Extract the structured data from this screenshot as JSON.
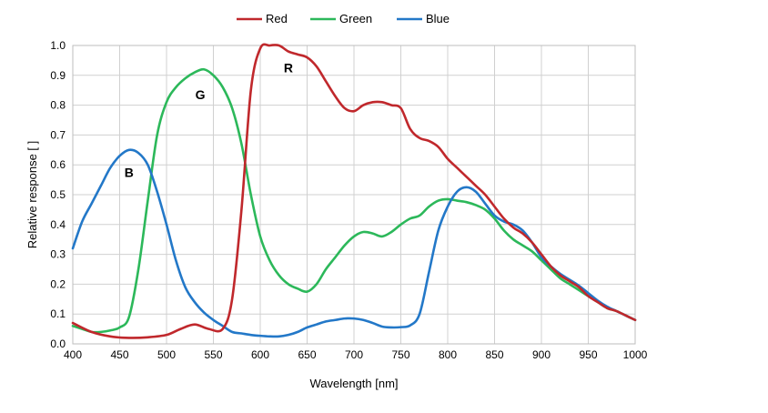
{
  "chart_data": {
    "type": "line",
    "title": "",
    "xlabel": "Wavelength [nm]",
    "ylabel": "Relative response [ ]",
    "xlim": [
      400,
      1000
    ],
    "ylim": [
      0,
      1
    ],
    "x_ticks": [
      400,
      450,
      500,
      550,
      600,
      650,
      700,
      750,
      800,
      850,
      900,
      950,
      1000
    ],
    "y_ticks": [
      0.0,
      0.1,
      0.2,
      0.3,
      0.4,
      0.5,
      0.6,
      0.7,
      0.8,
      0.9,
      1.0
    ],
    "grid": true,
    "legend": {
      "position": "top-center",
      "entries": [
        "Red",
        "Green",
        "Blue"
      ]
    },
    "annotations": [
      {
        "text": "B",
        "x": 460,
        "y": 0.56
      },
      {
        "text": "G",
        "x": 536,
        "y": 0.82
      },
      {
        "text": "R",
        "x": 630,
        "y": 0.91
      }
    ],
    "series": [
      {
        "name": "Red",
        "color": "#c0282c",
        "points": [
          [
            400,
            0.07
          ],
          [
            420,
            0.04
          ],
          [
            440,
            0.025
          ],
          [
            460,
            0.02
          ],
          [
            480,
            0.022
          ],
          [
            500,
            0.03
          ],
          [
            515,
            0.05
          ],
          [
            530,
            0.065
          ],
          [
            545,
            0.05
          ],
          [
            560,
            0.05
          ],
          [
            570,
            0.15
          ],
          [
            580,
            0.45
          ],
          [
            590,
            0.85
          ],
          [
            600,
            0.99
          ],
          [
            610,
            1.0
          ],
          [
            620,
            1.0
          ],
          [
            630,
            0.98
          ],
          [
            640,
            0.97
          ],
          [
            650,
            0.96
          ],
          [
            660,
            0.93
          ],
          [
            670,
            0.88
          ],
          [
            680,
            0.83
          ],
          [
            690,
            0.79
          ],
          [
            700,
            0.78
          ],
          [
            710,
            0.8
          ],
          [
            720,
            0.81
          ],
          [
            730,
            0.81
          ],
          [
            740,
            0.8
          ],
          [
            750,
            0.79
          ],
          [
            760,
            0.72
          ],
          [
            770,
            0.69
          ],
          [
            780,
            0.68
          ],
          [
            790,
            0.66
          ],
          [
            800,
            0.62
          ],
          [
            810,
            0.59
          ],
          [
            820,
            0.56
          ],
          [
            830,
            0.53
          ],
          [
            840,
            0.5
          ],
          [
            850,
            0.46
          ],
          [
            860,
            0.42
          ],
          [
            870,
            0.39
          ],
          [
            880,
            0.37
          ],
          [
            890,
            0.34
          ],
          [
            900,
            0.3
          ],
          [
            910,
            0.26
          ],
          [
            920,
            0.23
          ],
          [
            930,
            0.21
          ],
          [
            940,
            0.19
          ],
          [
            950,
            0.16
          ],
          [
            960,
            0.14
          ],
          [
            970,
            0.12
          ],
          [
            980,
            0.11
          ],
          [
            990,
            0.095
          ],
          [
            1000,
            0.08
          ]
        ]
      },
      {
        "name": "Green",
        "color": "#2cb85a",
        "points": [
          [
            400,
            0.06
          ],
          [
            410,
            0.05
          ],
          [
            420,
            0.04
          ],
          [
            430,
            0.04
          ],
          [
            440,
            0.045
          ],
          [
            450,
            0.055
          ],
          [
            460,
            0.09
          ],
          [
            470,
            0.25
          ],
          [
            480,
            0.48
          ],
          [
            490,
            0.7
          ],
          [
            500,
            0.81
          ],
          [
            510,
            0.86
          ],
          [
            520,
            0.89
          ],
          [
            530,
            0.91
          ],
          [
            540,
            0.92
          ],
          [
            550,
            0.9
          ],
          [
            560,
            0.86
          ],
          [
            570,
            0.79
          ],
          [
            580,
            0.67
          ],
          [
            590,
            0.5
          ],
          [
            600,
            0.36
          ],
          [
            610,
            0.28
          ],
          [
            620,
            0.23
          ],
          [
            630,
            0.2
          ],
          [
            640,
            0.185
          ],
          [
            650,
            0.175
          ],
          [
            660,
            0.2
          ],
          [
            670,
            0.25
          ],
          [
            680,
            0.29
          ],
          [
            690,
            0.33
          ],
          [
            700,
            0.36
          ],
          [
            710,
            0.375
          ],
          [
            720,
            0.37
          ],
          [
            730,
            0.36
          ],
          [
            740,
            0.375
          ],
          [
            750,
            0.4
          ],
          [
            760,
            0.42
          ],
          [
            770,
            0.43
          ],
          [
            780,
            0.46
          ],
          [
            790,
            0.48
          ],
          [
            800,
            0.485
          ],
          [
            810,
            0.48
          ],
          [
            820,
            0.475
          ],
          [
            830,
            0.465
          ],
          [
            840,
            0.45
          ],
          [
            850,
            0.42
          ],
          [
            860,
            0.38
          ],
          [
            870,
            0.35
          ],
          [
            880,
            0.33
          ],
          [
            890,
            0.31
          ],
          [
            900,
            0.28
          ],
          [
            910,
            0.25
          ],
          [
            920,
            0.22
          ],
          [
            930,
            0.2
          ],
          [
            940,
            0.18
          ],
          [
            950,
            0.16
          ],
          [
            960,
            0.14
          ],
          [
            970,
            0.12
          ],
          [
            980,
            0.11
          ],
          [
            990,
            0.095
          ],
          [
            1000,
            0.08
          ]
        ]
      },
      {
        "name": "Blue",
        "color": "#2378c8",
        "points": [
          [
            400,
            0.32
          ],
          [
            410,
            0.41
          ],
          [
            420,
            0.47
          ],
          [
            430,
            0.53
          ],
          [
            440,
            0.59
          ],
          [
            450,
            0.63
          ],
          [
            460,
            0.65
          ],
          [
            470,
            0.64
          ],
          [
            480,
            0.6
          ],
          [
            490,
            0.51
          ],
          [
            500,
            0.4
          ],
          [
            510,
            0.28
          ],
          [
            520,
            0.19
          ],
          [
            530,
            0.14
          ],
          [
            540,
            0.105
          ],
          [
            550,
            0.08
          ],
          [
            560,
            0.06
          ],
          [
            570,
            0.04
          ],
          [
            580,
            0.035
          ],
          [
            590,
            0.03
          ],
          [
            600,
            0.027
          ],
          [
            610,
            0.025
          ],
          [
            620,
            0.025
          ],
          [
            630,
            0.03
          ],
          [
            640,
            0.04
          ],
          [
            650,
            0.055
          ],
          [
            660,
            0.065
          ],
          [
            670,
            0.075
          ],
          [
            680,
            0.08
          ],
          [
            690,
            0.085
          ],
          [
            700,
            0.085
          ],
          [
            710,
            0.08
          ],
          [
            720,
            0.07
          ],
          [
            730,
            0.058
          ],
          [
            740,
            0.055
          ],
          [
            750,
            0.056
          ],
          [
            760,
            0.062
          ],
          [
            770,
            0.1
          ],
          [
            780,
            0.24
          ],
          [
            790,
            0.38
          ],
          [
            800,
            0.46
          ],
          [
            810,
            0.51
          ],
          [
            820,
            0.525
          ],
          [
            830,
            0.51
          ],
          [
            840,
            0.47
          ],
          [
            850,
            0.43
          ],
          [
            860,
            0.41
          ],
          [
            870,
            0.4
          ],
          [
            880,
            0.38
          ],
          [
            890,
            0.34
          ],
          [
            900,
            0.29
          ],
          [
            910,
            0.26
          ],
          [
            920,
            0.235
          ],
          [
            930,
            0.215
          ],
          [
            940,
            0.195
          ],
          [
            950,
            0.17
          ],
          [
            960,
            0.145
          ],
          [
            970,
            0.125
          ],
          [
            980,
            0.11
          ],
          [
            990,
            0.095
          ],
          [
            1000,
            0.08
          ]
        ]
      }
    ]
  }
}
